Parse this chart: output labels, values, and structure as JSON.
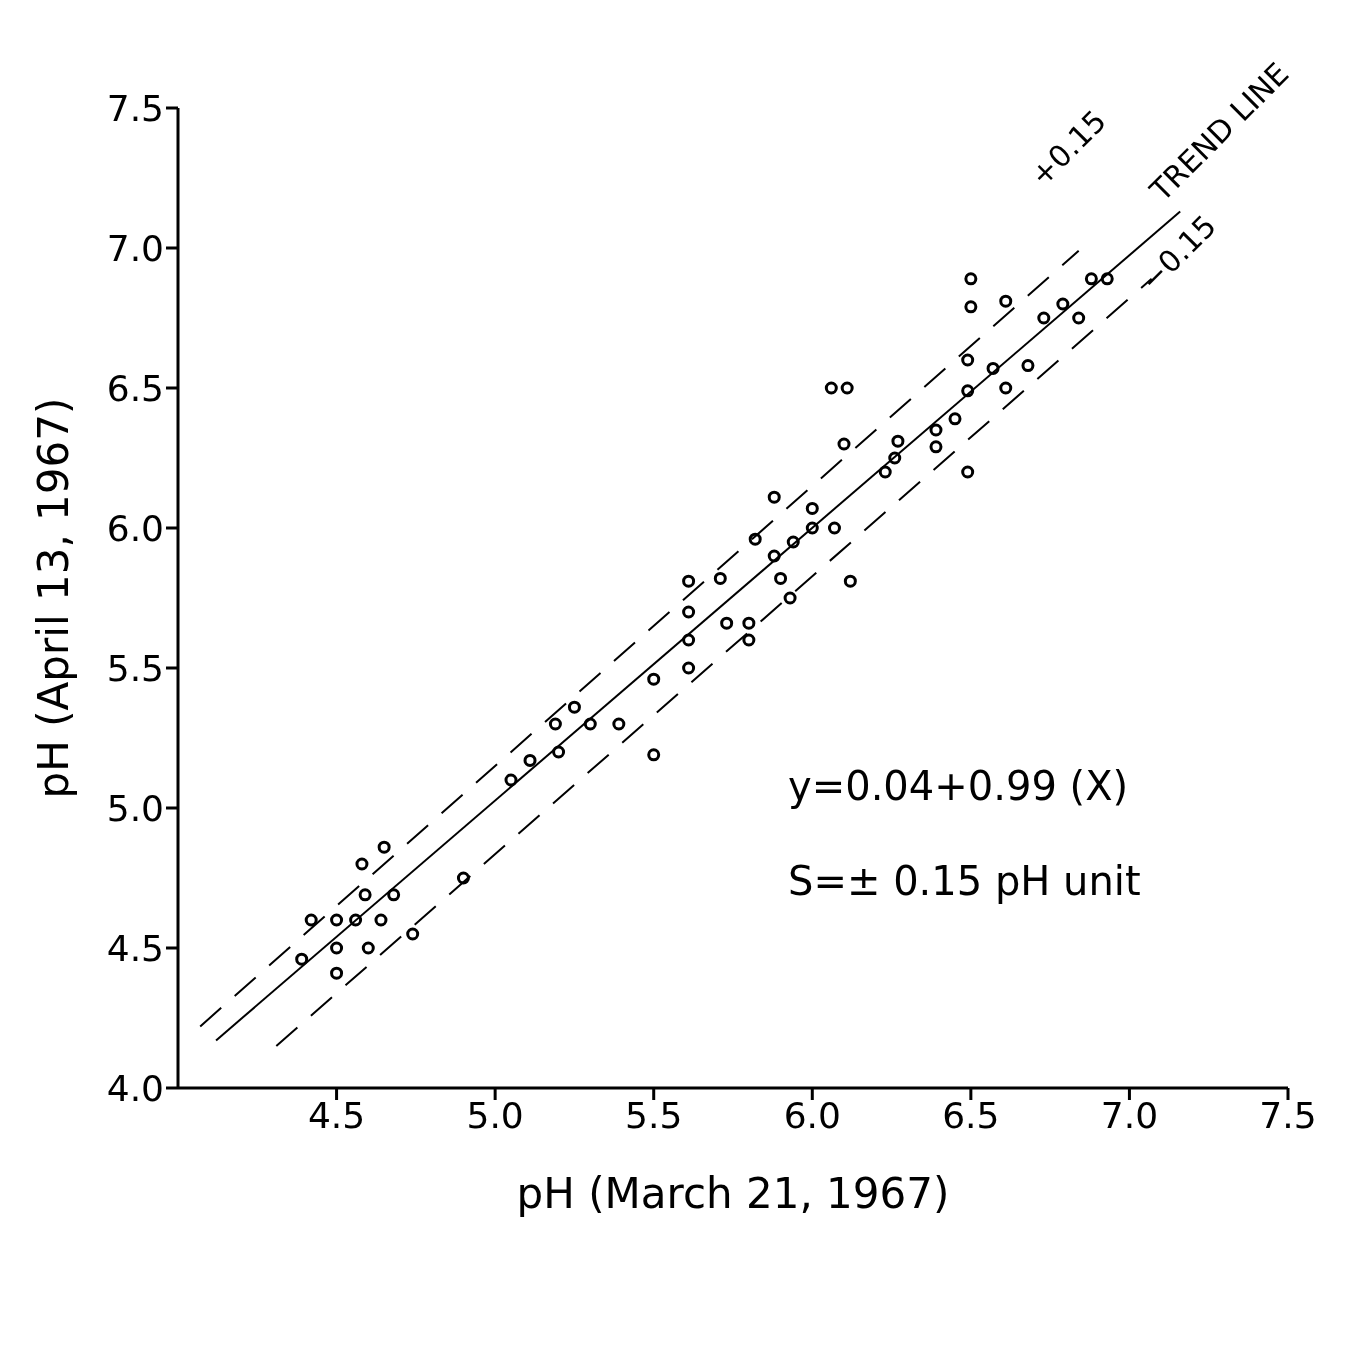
{
  "chart_data": {
    "type": "scatter",
    "xlabel": "pH (March 21, 1967)",
    "ylabel": "pH (April 13, 1967)",
    "xlim": [
      4.0,
      7.5
    ],
    "xticks": [
      4.5,
      {
        "value": 5,
        "label": "5.0"
      },
      5.5,
      {
        "value": 6,
        "label": "6.0"
      },
      6.5,
      {
        "value": 7,
        "label": "7.0"
      },
      7.5
    ],
    "ylim": [
      4.0,
      7.5
    ],
    "yticks": [
      {
        "value": 4,
        "label": "4.0"
      },
      4.5,
      {
        "value": 5,
        "label": "5.0"
      },
      5.5,
      {
        "value": 6,
        "label": "6.0"
      },
      6.5,
      {
        "value": 7,
        "label": "7.0"
      },
      7.5
    ],
    "grid": false,
    "legend": false,
    "series": [
      {
        "marker": "circle",
        "color": "#000000",
        "x": [
          4.39,
          4.42,
          4.5,
          4.5,
          4.5,
          4.58,
          4.59,
          4.56,
          4.6,
          4.64,
          4.65,
          4.68,
          4.74,
          4.9,
          5.05,
          5.11,
          5.19,
          5.2,
          5.25,
          5.3,
          5.39,
          5.5,
          5.5,
          5.61,
          5.61,
          5.61,
          5.61,
          5.71,
          5.73,
          5.8,
          5.8,
          5.82,
          5.88,
          5.88,
          5.9,
          5.93,
          5.94,
          6.0,
          6.0,
          6.07,
          6.06,
          6.11,
          6.1,
          6.12,
          6.23,
          6.27,
          6.26,
          6.39,
          6.39,
          6.45,
          6.49,
          6.5,
          6.5,
          6.49,
          6.49,
          6.57,
          6.61,
          6.61,
          6.68,
          6.73,
          6.79,
          6.84,
          6.88,
          6.93
        ],
        "values": [
          4.46,
          4.6,
          4.6,
          4.5,
          4.41,
          4.8,
          4.69,
          4.6,
          4.5,
          4.6,
          4.86,
          4.69,
          4.55,
          4.75,
          5.1,
          5.17,
          5.3,
          5.2,
          5.36,
          5.3,
          5.3,
          5.46,
          5.19,
          5.81,
          5.7,
          5.6,
          5.5,
          5.82,
          5.66,
          5.66,
          5.6,
          5.96,
          5.9,
          6.11,
          5.82,
          5.75,
          5.95,
          6.07,
          6.0,
          6.0,
          6.5,
          6.5,
          6.3,
          5.81,
          6.2,
          6.31,
          6.25,
          6.35,
          6.29,
          6.39,
          6.6,
          6.89,
          6.79,
          6.49,
          6.2,
          6.57,
          6.81,
          6.5,
          6.58,
          6.75,
          6.8,
          6.75,
          6.89,
          6.89
        ]
      },
      {
        "type": "line",
        "color": "#000000",
        "line_style": "solid",
        "x": [
          4.12,
          7.16
        ],
        "values": [
          4.17,
          7.13
        ]
      },
      {
        "type": "line",
        "color": "#000000",
        "line_style": "dashed",
        "x": [
          4.07,
          6.84
        ],
        "values": [
          4.22,
          6.99
        ]
      },
      {
        "type": "line",
        "color": "#000000",
        "line_style": "dashed",
        "x": [
          4.31,
          7.07
        ],
        "values": [
          4.15,
          6.89
        ]
      }
    ],
    "annotations": [
      "+0.15",
      "TREND LINE",
      "−0.15",
      "y=0.04+0.99 (X)",
      "S=± 0.15 pH unit"
    ]
  }
}
